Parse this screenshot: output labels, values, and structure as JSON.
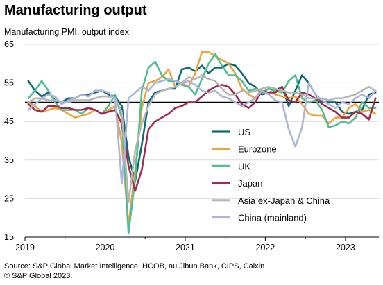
{
  "title": "Manufacturing output",
  "subtitle": "Manufacturing  PMI, output index",
  "source_line1": "Source: S&P Global Market Intelligence, HCOB, au Jibun Bank, CIPS, Caixin",
  "source_line2": "© S&P Global 2023.",
  "chart_data": {
    "type": "line",
    "ylim": [
      15,
      65
    ],
    "yticks": [
      15,
      25,
      35,
      45,
      55,
      65
    ],
    "reference_line": 50,
    "xticks": [
      "2019",
      "2020",
      "2021",
      "2022",
      "2023"
    ],
    "x_start": "2019-01",
    "n_months": 53,
    "grid": "horizontal",
    "legend_position": "lower-right",
    "series": [
      {
        "name": "US",
        "color": "#0c6a74",
        "values": [
          55.5,
          53.0,
          51.5,
          52.5,
          50.5,
          50.0,
          51.0,
          51.0,
          52.0,
          52.0,
          52.5,
          53.0,
          52.0,
          51.5,
          49.0,
          36.0,
          29.5,
          39.0,
          50.0,
          52.5,
          53.0,
          53.5,
          53.5,
          58.5,
          59.0,
          58.0,
          59.5,
          57.5,
          59.0,
          59.0,
          60.0,
          59.5,
          57.5,
          55.0,
          54.0,
          52.0,
          52.5,
          53.0,
          54.0,
          49.0,
          53.0,
          57.0,
          55.0,
          52.0,
          50.0,
          50.0,
          50.0,
          47.5,
          47.0,
          47.5,
          48.0,
          52.0,
          52.5
        ]
      },
      {
        "name": "Eurozone",
        "color": "#f0a33d",
        "values": [
          50.0,
          49.0,
          47.5,
          48.0,
          48.5,
          48.0,
          47.0,
          46.0,
          46.5,
          47.0,
          48.0,
          47.0,
          48.0,
          49.0,
          39.5,
          18.0,
          32.5,
          48.5,
          55.0,
          55.5,
          56.5,
          58.5,
          54.0,
          55.0,
          54.0,
          57.5,
          63.0,
          63.0,
          62.0,
          61.0,
          60.0,
          57.5,
          53.5,
          52.0,
          51.0,
          53.5,
          54.0,
          52.0,
          51.5,
          51.0,
          51.5,
          49.5,
          47.0,
          46.5,
          46.5,
          44.5,
          46.0,
          46.0,
          48.5,
          49.5,
          47.5,
          48.0,
          47.0
        ]
      },
      {
        "name": "UK",
        "color": "#4fbf93",
        "values": [
          51.0,
          53.0,
          55.5,
          53.0,
          50.0,
          48.0,
          48.0,
          48.0,
          47.0,
          48.5,
          48.0,
          47.0,
          49.0,
          52.0,
          46.0,
          16.0,
          30.0,
          53.0,
          59.0,
          60.5,
          57.0,
          55.5,
          55.5,
          54.5,
          54.0,
          52.0,
          56.0,
          60.0,
          62.5,
          59.5,
          57.0,
          57.0,
          55.5,
          53.0,
          53.5,
          52.5,
          53.5,
          53.0,
          52.5,
          55.5,
          57.0,
          51.0,
          50.0,
          50.5,
          48.0,
          43.5,
          44.0,
          45.0,
          44.5,
          46.0,
          50.0,
          48.5,
          48.5
        ]
      },
      {
        "name": "Japan",
        "color": "#a32b4c",
        "values": [
          49.5,
          48.0,
          47.5,
          49.0,
          49.0,
          48.5,
          48.5,
          48.0,
          48.0,
          48.5,
          48.0,
          47.0,
          47.5,
          48.0,
          44.5,
          33.5,
          27.0,
          32.5,
          43.0,
          45.0,
          46.0,
          47.0,
          48.5,
          49.0,
          50.0,
          50.0,
          51.5,
          53.0,
          54.0,
          54.5,
          54.0,
          52.0,
          49.5,
          48.5,
          50.0,
          53.0,
          52.5,
          52.5,
          54.0,
          50.5,
          50.0,
          52.5,
          52.0,
          51.0,
          49.5,
          48.5,
          47.5,
          46.0,
          46.0,
          47.5,
          47.0,
          45.5,
          51.0
        ]
      },
      {
        "name": "Asia ex-Japan & China",
        "color": "#b6b6b6",
        "values": [
          50.0,
          51.0,
          51.0,
          50.5,
          50.5,
          50.0,
          50.0,
          50.5,
          50.5,
          50.5,
          51.0,
          51.5,
          51.5,
          51.0,
          47.5,
          24.0,
          37.5,
          44.5,
          49.0,
          52.0,
          53.0,
          53.5,
          54.0,
          55.0,
          56.5,
          56.0,
          57.0,
          56.0,
          55.5,
          53.5,
          52.0,
          52.0,
          53.0,
          52.5,
          53.0,
          53.5,
          54.0,
          53.5,
          53.0,
          52.5,
          52.5,
          52.0,
          51.0,
          51.0,
          51.0,
          50.5,
          51.0,
          51.0,
          51.5,
          52.0,
          53.0,
          54.0,
          53.0
        ]
      },
      {
        "name": "China (mainland)",
        "color": "#aab4dd",
        "values": [
          48.0,
          49.5,
          51.0,
          52.0,
          51.5,
          49.5,
          50.5,
          51.0,
          52.0,
          51.5,
          53.0,
          53.0,
          52.5,
          51.0,
          29.0,
          51.0,
          52.5,
          54.0,
          53.0,
          55.0,
          55.5,
          56.0,
          55.5,
          55.0,
          55.5,
          54.5,
          53.0,
          52.5,
          53.0,
          51.5,
          51.0,
          50.0,
          49.0,
          50.0,
          51.0,
          53.0,
          52.0,
          50.5,
          50.0,
          43.0,
          38.5,
          43.5,
          55.0,
          52.0,
          50.5,
          49.5,
          48.5,
          50.0,
          49.5,
          51.0,
          52.0,
          51.0,
          53.0
        ]
      }
    ]
  }
}
